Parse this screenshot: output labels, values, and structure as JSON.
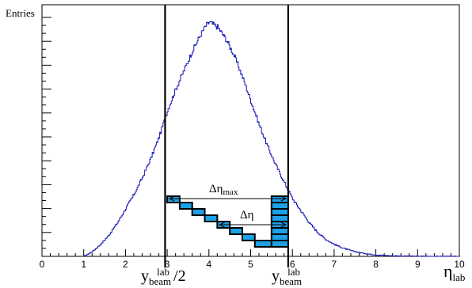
{
  "chart_data": {
    "type": "histogram",
    "ylabel": "Entries",
    "xlabel": {
      "main": "η",
      "sub": "lab"
    },
    "xlim": [
      0,
      10
    ],
    "ylim": [
      0,
      1.0
    ],
    "x_ticks": [
      "0",
      "1",
      "2",
      "3",
      "4",
      "5",
      "6",
      "7",
      "8",
      "9",
      "10"
    ],
    "line_color": "#1a1ab8",
    "series": [
      {
        "x": [
          1.0,
          1.2,
          1.4,
          1.6,
          1.8,
          2.0,
          2.2,
          2.4,
          2.6,
          2.8,
          3.0,
          3.2,
          3.4,
          3.6,
          3.8,
          3.9,
          4.0,
          4.1,
          4.2,
          4.4,
          4.6,
          4.8,
          5.0,
          5.2,
          5.4,
          5.6,
          5.8,
          6.0,
          6.2,
          6.4,
          6.6,
          6.8,
          7.0,
          7.2,
          7.4,
          7.6,
          7.8,
          8.0,
          8.3,
          8.6,
          9.0,
          9.5,
          10.0
        ],
        "values": [
          0.0,
          0.02,
          0.05,
          0.09,
          0.14,
          0.2,
          0.26,
          0.33,
          0.41,
          0.5,
          0.61,
          0.7,
          0.78,
          0.86,
          0.93,
          0.96,
          0.98,
          0.97,
          0.96,
          0.91,
          0.84,
          0.75,
          0.65,
          0.55,
          0.46,
          0.38,
          0.31,
          0.24,
          0.19,
          0.14,
          0.1,
          0.07,
          0.05,
          0.035,
          0.024,
          0.016,
          0.01,
          0.006,
          0.003,
          0.0015,
          0.0007,
          0.0002,
          0.0
        ]
      }
    ],
    "vertical_lines": [
      2.95,
      5.9
    ],
    "annotations": {
      "beam_half": {
        "main": "y",
        "sub": "beam",
        "sup": "lab",
        "suffix": " /2"
      },
      "beam_full": {
        "main": "y",
        "sub": "beam",
        "sup": "lab"
      },
      "delta_eta_max": {
        "main": "Δη",
        "sub": "max"
      },
      "delta_eta": {
        "main": "Δη"
      }
    },
    "box_color": "#1ea0e6",
    "staircase_boxes": [
      {
        "x0": 3.0,
        "x1": 3.3,
        "level": 0
      },
      {
        "x0": 3.3,
        "x1": 3.6,
        "level": 1
      },
      {
        "x0": 3.6,
        "x1": 3.9,
        "level": 2
      },
      {
        "x0": 3.9,
        "x1": 4.2,
        "level": 3
      },
      {
        "x0": 4.2,
        "x1": 4.5,
        "level": 4
      },
      {
        "x0": 4.5,
        "x1": 4.8,
        "level": 5
      },
      {
        "x0": 4.8,
        "x1": 5.1,
        "level": 6
      },
      {
        "x0": 5.1,
        "x1": 5.5,
        "level": 7
      },
      {
        "x0": 5.5,
        "x1": 5.9,
        "level": 0
      },
      {
        "x0": 5.5,
        "x1": 5.9,
        "level": 1
      },
      {
        "x0": 5.5,
        "x1": 5.9,
        "level": 2
      },
      {
        "x0": 5.5,
        "x1": 5.9,
        "level": 3
      },
      {
        "x0": 5.5,
        "x1": 5.9,
        "level": 4
      },
      {
        "x0": 5.5,
        "x1": 5.9,
        "level": 5
      },
      {
        "x0": 5.5,
        "x1": 5.9,
        "level": 6
      },
      {
        "x0": 5.5,
        "x1": 5.9,
        "level": 7
      }
    ]
  }
}
